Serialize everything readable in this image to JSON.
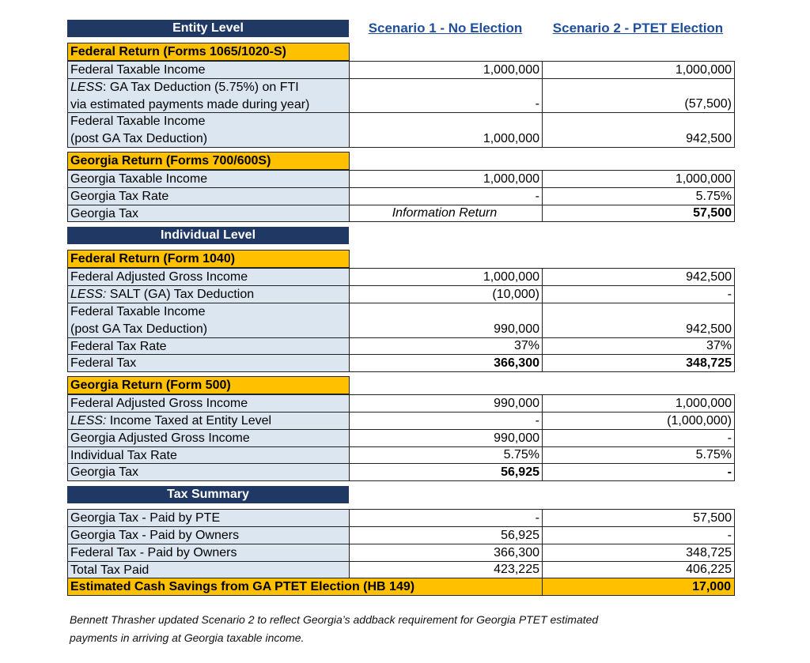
{
  "header": {
    "scenario_1": "Scenario 1 - No Election",
    "scenario_2": "Scenario 2 - PTET Election"
  },
  "groups": [
    {
      "banner": "Entity Level",
      "sections": [
        {
          "title": "Federal Return (Forms 1065/1020-S)",
          "rows": [
            {
              "label": [
                "Federal Taxable Income"
              ],
              "values": [
                "1,000,000",
                "1,000,000"
              ]
            },
            {
              "lead": "LESS",
              "label": [
                ": GA Tax Deduction (5.75%) on FTI",
                "via estimated payments made during year)"
              ],
              "values": [
                "-",
                "(57,500)"
              ]
            },
            {
              "label": [
                "Federal Taxable Income",
                "(post GA Tax Deduction)"
              ],
              "values": [
                "1,000,000",
                "942,500"
              ]
            }
          ]
        },
        {
          "title": "Georgia Return (Forms 700/600S)",
          "rows": [
            {
              "label": [
                "Georgia Taxable Income"
              ],
              "values": [
                "1,000,000",
                "1,000,000"
              ]
            },
            {
              "label": [
                "Georgia Tax Rate"
              ],
              "values": [
                "-",
                "5.75%"
              ]
            },
            {
              "label": [
                "Georgia Tax"
              ],
              "values": [
                "Information Return",
                "57,500"
              ],
              "italic": [
                true,
                false
              ],
              "bold": [
                false,
                true
              ]
            }
          ]
        }
      ]
    },
    {
      "banner": "Individual Level",
      "sections": [
        {
          "title": "Federal Return (Form 1040)",
          "rows": [
            {
              "label": [
                "Federal Adjusted Gross Income"
              ],
              "values": [
                "1,000,000",
                "942,500"
              ]
            },
            {
              "lead": "LESS:",
              "label": [
                " SALT (GA) Tax Deduction"
              ],
              "values": [
                "(10,000)",
                "-"
              ]
            },
            {
              "label": [
                "Federal Taxable Income",
                "(post GA Tax Deduction)"
              ],
              "values": [
                "990,000",
                "942,500"
              ]
            },
            {
              "label": [
                "Federal Tax Rate"
              ],
              "values": [
                "37%",
                "37%"
              ]
            },
            {
              "label": [
                "Federal Tax"
              ],
              "values": [
                "366,300",
                "348,725"
              ],
              "bold": [
                true,
                true
              ]
            }
          ]
        },
        {
          "title": "Georgia Return (Form 500)",
          "rows": [
            {
              "label": [
                "Federal Adjusted Gross Income"
              ],
              "values": [
                "990,000",
                "1,000,000"
              ]
            },
            {
              "lead": "LESS:",
              "label": [
                " Income Taxed at Entity Level"
              ],
              "values": [
                "-",
                "(1,000,000)"
              ]
            },
            {
              "label": [
                "Georgia Adjusted Gross Income"
              ],
              "values": [
                "990,000",
                "-"
              ]
            },
            {
              "label": [
                "Individual Tax Rate"
              ],
              "values": [
                "5.75%",
                "5.75%"
              ]
            },
            {
              "label": [
                "Georgia Tax"
              ],
              "values": [
                "56,925",
                "-"
              ],
              "bold": [
                true,
                true
              ]
            }
          ]
        }
      ]
    },
    {
      "banner": "Tax Summary",
      "sections": [
        {
          "rows": [
            {
              "label": [
                "Georgia Tax - Paid by PTE"
              ],
              "values": [
                "-",
                "57,500"
              ]
            },
            {
              "label": [
                "Georgia Tax - Paid by Owners"
              ],
              "values": [
                "56,925",
                "-"
              ]
            },
            {
              "label": [
                "Federal Tax - Paid by Owners"
              ],
              "values": [
                "366,300",
                "348,725"
              ]
            },
            {
              "label": [
                "Total Tax Paid"
              ],
              "values": [
                "423,225",
                "406,225"
              ]
            }
          ],
          "total": {
            "label": "Estimated Cash Savings from GA PTET Election (HB 149)",
            "value": "17,000"
          }
        }
      ]
    }
  ],
  "footnote": [
    "Bennett Thrasher updated Scenario 2 to reflect Georgia’s addback requirement for Georgia PTET estimated",
    "payments in arriving at Georgia taxable income."
  ]
}
